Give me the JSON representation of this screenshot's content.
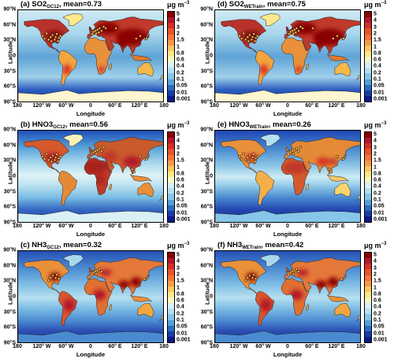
{
  "unit_label": {
    "base": "μg m",
    "exp": "−3"
  },
  "axis_labels": {
    "x": "Longitude",
    "y": "Latitude"
  },
  "lat_ticks": [
    "90°N",
    "60°N",
    "30°N",
    "0",
    "30°S",
    "60°S",
    "90°S"
  ],
  "lon_ticks": [
    "180",
    "120° W",
    "60° W",
    "0",
    "60° E",
    "120° E",
    "180"
  ],
  "colorbar_ticks": [
    "5",
    "4",
    "3",
    "2",
    "1.5",
    "1",
    "0.8",
    "0.6",
    "0.4",
    "0.2",
    "0.1",
    "0.05",
    "0.01",
    "0.001"
  ],
  "colorbar_colors": [
    "#8b0000",
    "#b2182b",
    "#d62f27",
    "#e9542b",
    "#f4743a",
    "#f79a4a",
    "#fcc85d",
    "#fde98a",
    "#f7f7c0",
    "#d9f0f5",
    "#b4e1f0",
    "#87c6e8",
    "#55a0d8",
    "#2b6cc4",
    "#1a3da8",
    "#0b1a8c"
  ],
  "panels": [
    {
      "id": "a",
      "label": "(a) SO2",
      "subscript": "GC12",
      "suffix": ", mean=0.73",
      "scheme": "so2"
    },
    {
      "id": "d",
      "label": "(d) SO2",
      "subscript": "WETrain",
      "suffix": ", mean=0.75",
      "scheme": "so2"
    },
    {
      "id": "b",
      "label": "(b) HNO3",
      "subscript": "GC12",
      "suffix": ", mean=0.56",
      "scheme": "hno3"
    },
    {
      "id": "e",
      "label": "(e) HNO3",
      "subscript": "WETrain",
      "suffix": ", mean=0.26",
      "scheme": "hno3low"
    },
    {
      "id": "c",
      "label": "(c) NH3",
      "subscript": "GC12",
      "suffix": ", mean=0.32",
      "scheme": "nh3"
    },
    {
      "id": "f",
      "label": "(f) NH3",
      "subscript": "WETrain",
      "suffix": ", mean=0.42",
      "scheme": "nh3"
    }
  ]
}
